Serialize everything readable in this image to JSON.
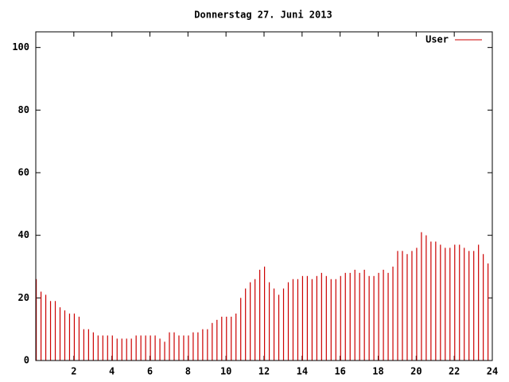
{
  "chart_data": {
    "type": "impulse",
    "title": "Donnerstag 27. Juni 2013",
    "x": [
      0,
      0.25,
      0.5,
      0.75,
      1,
      1.25,
      1.5,
      1.75,
      2,
      2.25,
      2.5,
      2.75,
      3,
      3.25,
      3.5,
      3.75,
      4,
      4.25,
      4.5,
      4.75,
      5,
      5.25,
      5.5,
      5.75,
      6,
      6.25,
      6.5,
      6.75,
      7,
      7.25,
      7.5,
      7.75,
      8,
      8.25,
      8.5,
      8.75,
      9,
      9.25,
      9.5,
      9.75,
      10,
      10.25,
      10.5,
      10.75,
      11,
      11.25,
      11.5,
      11.75,
      12,
      12.25,
      12.5,
      12.75,
      13,
      13.25,
      13.5,
      13.75,
      14,
      14.25,
      14.5,
      14.75,
      15,
      15.25,
      15.5,
      15.75,
      16,
      16.25,
      16.5,
      16.75,
      17,
      17.25,
      17.5,
      17.75,
      18,
      18.25,
      18.5,
      18.75,
      19,
      19.25,
      19.5,
      19.75,
      20,
      20.25,
      20.5,
      20.75,
      21,
      21.25,
      21.5,
      21.75,
      22,
      22.25,
      22.5,
      22.75,
      23,
      23.25,
      23.5,
      23.75
    ],
    "series": [
      {
        "name": "User",
        "color": "#cc0000",
        "values": [
          26,
          22,
          21,
          19,
          19,
          17,
          16,
          15,
          15,
          14,
          10,
          10,
          9,
          8,
          8,
          8,
          8,
          7,
          7,
          7,
          7,
          8,
          8,
          8,
          8,
          8,
          7,
          6,
          9,
          9,
          8,
          8,
          8,
          9,
          9,
          10,
          10,
          12,
          13,
          14,
          14,
          14,
          15,
          20,
          23,
          25,
          26,
          29,
          30,
          25,
          23,
          21,
          23,
          25,
          26,
          26,
          27,
          27,
          26,
          27,
          28,
          27,
          26,
          26,
          27,
          28,
          28,
          29,
          28,
          29,
          27,
          27,
          28,
          29,
          28,
          30,
          35,
          35,
          34,
          35,
          36,
          41,
          40,
          38,
          38,
          37,
          36,
          36,
          37,
          37,
          36,
          35,
          35,
          37,
          34,
          31
        ]
      }
    ],
    "xlim": [
      0,
      24
    ],
    "xticks": [
      2,
      4,
      6,
      8,
      10,
      12,
      14,
      16,
      18,
      20,
      22,
      24
    ],
    "ylim": [
      0,
      105
    ],
    "yticks": [
      0,
      20,
      40,
      60,
      80,
      100
    ],
    "legend": "upper right"
  }
}
